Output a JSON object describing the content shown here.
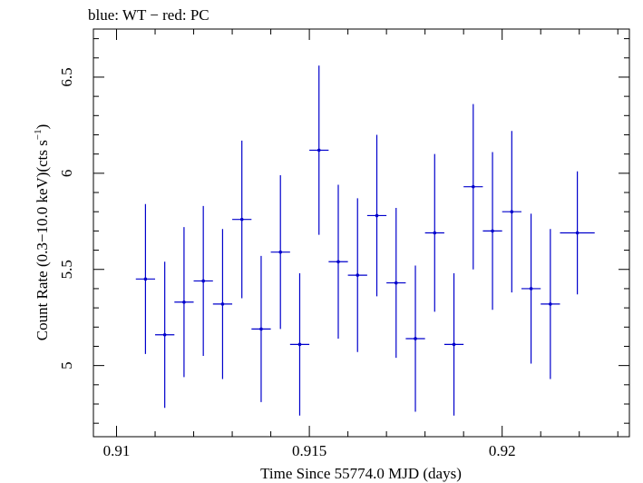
{
  "chart_data": {
    "type": "scatter",
    "title": "blue: WT − red: PC",
    "xlabel": "Time Since 55774.0 MJD (days)",
    "ylabel_main": "Count Rate (0.3−10.0 keV)(cts s",
    "ylabel_sup": "−1",
    "ylabel_end": ")",
    "xlim": [
      0.9094,
      0.9233
    ],
    "ylim": [
      4.63,
      6.75
    ],
    "x_ticks": [
      {
        "value": 0.91,
        "label": "0.91"
      },
      {
        "value": 0.915,
        "label": "0.915"
      },
      {
        "value": 0.92,
        "label": "0.92"
      }
    ],
    "y_ticks": [
      {
        "value": 5,
        "label": "5"
      },
      {
        "value": 5.5,
        "label": "5.5"
      },
      {
        "value": 6,
        "label": "6"
      },
      {
        "value": 6.5,
        "label": "6.5"
      }
    ],
    "series": [
      {
        "color": "#0000cc",
        "points": [
          {
            "x": 0.91075,
            "xerr": 0.00025,
            "y": 5.45,
            "yerr": 0.39
          },
          {
            "x": 0.91125,
            "xerr": 0.00025,
            "y": 5.16,
            "yerr": 0.38
          },
          {
            "x": 0.91175,
            "xerr": 0.00025,
            "y": 5.33,
            "yerr": 0.39
          },
          {
            "x": 0.91225,
            "xerr": 0.00025,
            "y": 5.44,
            "yerr": 0.39
          },
          {
            "x": 0.91275,
            "xerr": 0.00025,
            "y": 5.32,
            "yerr": 0.39
          },
          {
            "x": 0.91325,
            "xerr": 0.00025,
            "y": 5.76,
            "yerr": 0.41
          },
          {
            "x": 0.91375,
            "xerr": 0.00025,
            "y": 5.19,
            "yerr": 0.38
          },
          {
            "x": 0.91425,
            "xerr": 0.00025,
            "y": 5.59,
            "yerr": 0.4
          },
          {
            "x": 0.91475,
            "xerr": 0.00025,
            "y": 5.11,
            "yerr": 0.37
          },
          {
            "x": 0.91525,
            "xerr": 0.00025,
            "y": 6.12,
            "yerr": 0.44
          },
          {
            "x": 0.91575,
            "xerr": 0.00025,
            "y": 5.54,
            "yerr": 0.4
          },
          {
            "x": 0.91625,
            "xerr": 0.00025,
            "y": 5.47,
            "yerr": 0.4
          },
          {
            "x": 0.91675,
            "xerr": 0.00025,
            "y": 5.78,
            "yerr": 0.42
          },
          {
            "x": 0.91725,
            "xerr": 0.00025,
            "y": 5.43,
            "yerr": 0.39
          },
          {
            "x": 0.91775,
            "xerr": 0.00025,
            "y": 5.14,
            "yerr": 0.38
          },
          {
            "x": 0.91825,
            "xerr": 0.00025,
            "y": 5.69,
            "yerr": 0.41
          },
          {
            "x": 0.91875,
            "xerr": 0.00025,
            "y": 5.11,
            "yerr": 0.37
          },
          {
            "x": 0.91925,
            "xerr": 0.00025,
            "y": 5.93,
            "yerr": 0.43
          },
          {
            "x": 0.91975,
            "xerr": 0.00025,
            "y": 5.7,
            "yerr": 0.41
          },
          {
            "x": 0.92025,
            "xerr": 0.00025,
            "y": 5.8,
            "yerr": 0.42
          },
          {
            "x": 0.92075,
            "xerr": 0.00025,
            "y": 5.4,
            "yerr": 0.39
          },
          {
            "x": 0.92125,
            "xerr": 0.00025,
            "y": 5.32,
            "yerr": 0.39
          },
          {
            "x": 0.92195,
            "xerr": 0.00045,
            "y": 5.69,
            "yerr": 0.32
          }
        ]
      }
    ]
  }
}
